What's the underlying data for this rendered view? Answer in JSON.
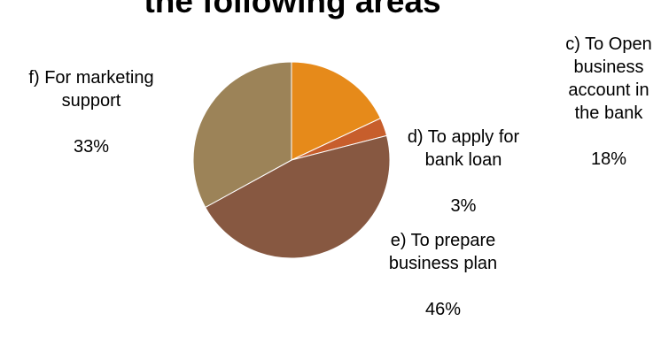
{
  "chart_data": {
    "type": "pie",
    "title": "the following areas",
    "slices": [
      {
        "label": "c) To Open business account in the bank",
        "percent": "18%",
        "value": 18,
        "color": "#E68A1A"
      },
      {
        "label": "d) To apply for bank loan",
        "percent": "3%",
        "value": 3,
        "color": "#C75E2C"
      },
      {
        "label": "e) To prepare business plan",
        "percent": "46%",
        "value": 46,
        "color": "#875841"
      },
      {
        "label": "f) For marketing support",
        "percent": "33%",
        "value": 33,
        "color": "#9C8358"
      }
    ]
  }
}
